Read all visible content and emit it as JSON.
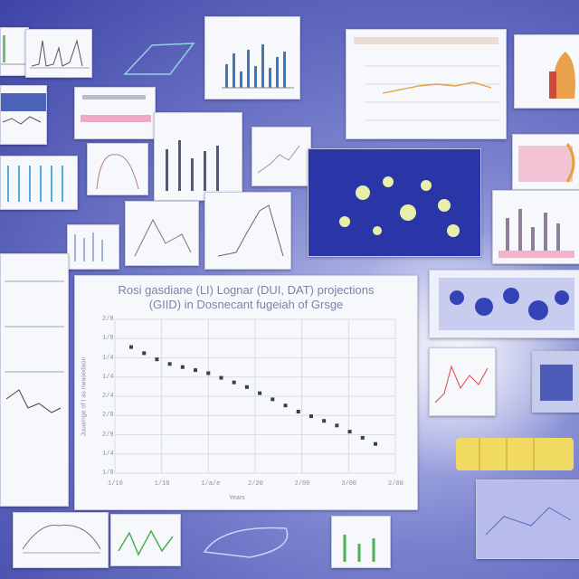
{
  "main_chart": {
    "title_line1": "Rosi gasdiane (LI) Lognar (DUI, DAT) projections",
    "title_line2": "(GIID) in Dosnecant fugeiah of Grsge",
    "xlabel": "Years",
    "ylabel": "Juuarnge of t as nwasedaon",
    "y_ticks": [
      "2/8",
      "1/8",
      "1/4",
      "1/4",
      "2/4",
      "2/8",
      "2/9",
      "1/4",
      "1/8"
    ],
    "x_ticks": [
      "1/10",
      "1/10",
      "1/a/e",
      "2/20",
      "2/00",
      "3/00",
      "2/00"
    ]
  },
  "chart_data": {
    "type": "scatter",
    "title": "Rosi gasdiane (LI) Lognar (DUI, DAT) projections (GIID) in Dosnecant fugeiah of Grsge",
    "xlabel": "Years",
    "ylabel": "Juuarnge of t as nwasedaon",
    "x": [
      1,
      2,
      3,
      4,
      5,
      6,
      7,
      8,
      9,
      10,
      11,
      12,
      13,
      14,
      15,
      16,
      17,
      18,
      19,
      20
    ],
    "values": [
      8.1,
      7.9,
      7.7,
      7.55,
      7.45,
      7.35,
      7.25,
      7.1,
      6.95,
      6.8,
      6.6,
      6.4,
      6.2,
      6.0,
      5.85,
      5.7,
      5.55,
      5.35,
      5.15,
      4.95
    ],
    "grid": true
  },
  "colors": {
    "background": "#3d44a6",
    "panel": "#f7f8fb",
    "marker": "#3a3d55",
    "gridline": "#d9dbe8"
  }
}
